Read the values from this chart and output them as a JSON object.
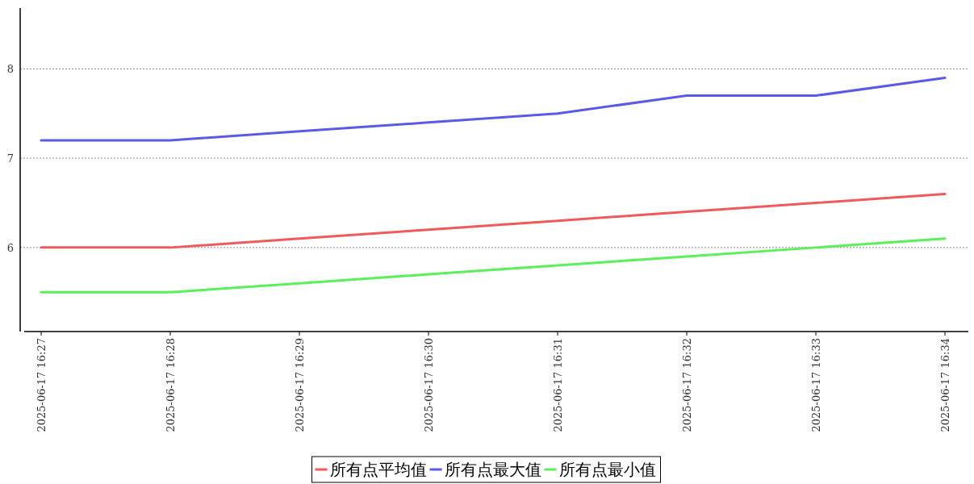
{
  "chart_data": {
    "type": "line",
    "categories": [
      "2025-06-17 16:27",
      "2025-06-17 16:28",
      "2025-06-17 16:29",
      "2025-06-17 16:30",
      "2025-06-17 16:31",
      "2025-06-17 16:32",
      "2025-06-17 16:33",
      "2025-06-17 16:34"
    ],
    "series": [
      {
        "name": "所有点平均值",
        "color": "#f05a5a",
        "values": [
          6.0,
          6.0,
          6.1,
          6.2,
          6.3,
          6.4,
          6.5,
          6.6
        ]
      },
      {
        "name": "所有点最大值",
        "color": "#5a5ae6",
        "values": [
          7.2,
          7.2,
          7.3,
          7.4,
          7.5,
          7.7,
          7.7,
          7.9
        ]
      },
      {
        "name": "所有点最小值",
        "color": "#5af05a",
        "values": [
          5.5,
          5.5,
          5.6,
          5.7,
          5.8,
          5.9,
          6.0,
          6.1
        ]
      }
    ],
    "ylim": [
      5.06,
      8.68
    ],
    "yticks": [
      6,
      7,
      8
    ],
    "grid": "y",
    "legend": "bottom",
    "marker": "none",
    "line_style": "solid"
  }
}
